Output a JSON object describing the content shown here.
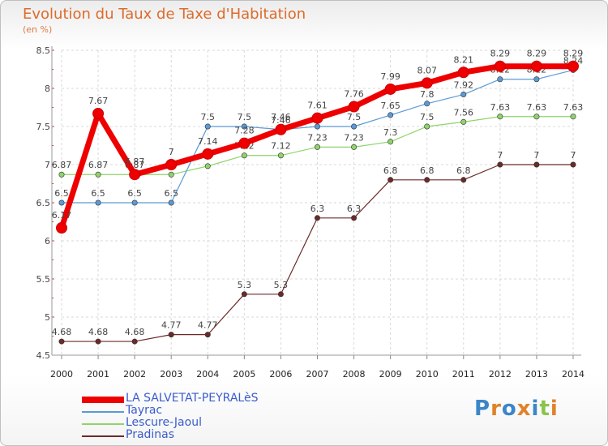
{
  "title": "Evolution du Taux de Taxe d'Habitation",
  "subtitle": "(en %)",
  "logo": {
    "text": "Proxiti",
    "letters": [
      [
        "P",
        "#3a86c8"
      ],
      [
        "r",
        "#e0822a"
      ],
      [
        "o",
        "#3a86c8"
      ],
      [
        "x",
        "#e0822a"
      ],
      [
        "i",
        "#3a86c8"
      ],
      [
        "t",
        "#8bc34a"
      ],
      [
        "i",
        "#e0822a"
      ]
    ]
  },
  "chart_data": {
    "type": "line",
    "x": [
      "2000",
      "2001",
      "2002",
      "2003",
      "2004",
      "2005",
      "2006",
      "2007",
      "2008",
      "2009",
      "2010",
      "2011",
      "2012",
      "2013",
      "2014"
    ],
    "yticks": [
      "4.5",
      "5",
      "5.5",
      "6",
      "6.5",
      "7",
      "7.5",
      "8",
      "8.5"
    ],
    "ylim": [
      4.5,
      8.5
    ],
    "grid": true,
    "legend_position": "bottom",
    "series": [
      {
        "name": "Pradinas",
        "color": "#6b2a2a",
        "values": [
          4.68,
          4.68,
          4.68,
          4.77,
          4.77,
          5.3,
          5.3,
          6.3,
          6.3,
          6.8,
          6.8,
          6.8,
          7,
          7,
          7
        ],
        "labels": [
          "4.68",
          "4.68",
          "4.68",
          "4.77",
          "4.77",
          "5.3",
          "5.3",
          "6.3",
          "6.3",
          "6.8",
          "6.8",
          "6.8",
          "7",
          "7",
          "7"
        ]
      },
      {
        "name": "Lescure-Jaoul",
        "color": "#8fd46a",
        "values": [
          6.87,
          6.87,
          6.87,
          6.87,
          6.98,
          7.12,
          7.12,
          7.23,
          7.23,
          7.3,
          7.5,
          7.56,
          7.63,
          7.63,
          7.63
        ],
        "labels": [
          "6.87",
          "6.87",
          "6.87",
          "",
          "",
          "7.12",
          "7.12",
          "7.23",
          "7.23",
          "7.3",
          "7.5",
          "7.56",
          "7.63",
          "7.63",
          "7.63"
        ]
      },
      {
        "name": "Tayrac",
        "color": "#5b9bd5",
        "values": [
          6.5,
          6.5,
          6.5,
          6.5,
          7.5,
          7.5,
          7.46,
          7.5,
          7.5,
          7.65,
          7.8,
          7.92,
          8.12,
          8.12,
          8.24
        ],
        "labels": [
          "6.5",
          "6.5",
          "6.5",
          "6.5",
          "7.5",
          "7.5",
          "7.46",
          "",
          "7.5",
          "7.65",
          "7.8",
          "7.92",
          "8.12",
          "8.12",
          "8.24"
        ]
      },
      {
        "name": "LA SALVETAT-PEYRALèS",
        "color": "#ee0000",
        "values": [
          6.17,
          7.67,
          6.87,
          7,
          7.14,
          7.28,
          7.46,
          7.61,
          7.76,
          7.99,
          8.07,
          8.21,
          8.29,
          8.29,
          8.29
        ],
        "labels": [
          "6.17",
          "7.67",
          "6.87",
          "7",
          "7.14",
          "7.28",
          "7.46",
          "7.61",
          "7.76",
          "7.99",
          "8.07",
          "8.21",
          "8.29",
          "8.29",
          "8.29"
        ]
      }
    ]
  }
}
